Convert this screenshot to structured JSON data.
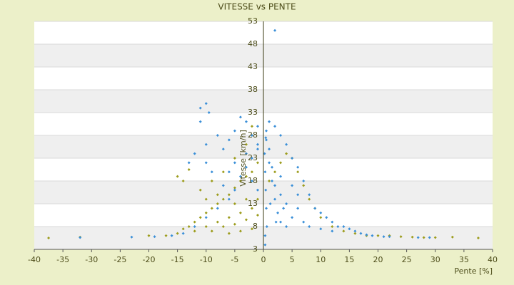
{
  "chart_data": {
    "type": "scatter",
    "title": "VITESSE vs PENTE",
    "x_label": "Pente [%]",
    "y_label": "Vitesse [km/h]",
    "xlim": [
      -40,
      40
    ],
    "xticks": [
      -40,
      -35,
      -30,
      -25,
      -20,
      -15,
      -10,
      -5,
      0,
      5,
      10,
      15,
      20,
      25,
      30,
      35,
      40
    ],
    "ylim": [
      3,
      53
    ],
    "yticks": [
      3,
      8,
      13,
      18,
      23,
      28,
      33,
      38,
      43,
      48,
      53
    ],
    "grid": true,
    "series": [
      {
        "color": "#9c9c1c",
        "x": [
          -37.5,
          -32,
          -20,
          -17,
          -15,
          -14,
          -13,
          -12,
          -11,
          -10,
          -9,
          -8,
          -7,
          -6,
          -5,
          -4,
          -3,
          -2,
          -1,
          -12,
          -10,
          -8,
          -6,
          -4,
          -2,
          -9,
          -7,
          -5,
          -3,
          -1,
          -14,
          -13,
          -15,
          -11,
          -9,
          -7,
          -5,
          -3,
          -2,
          -1,
          -6,
          -4,
          -2,
          1,
          2,
          3,
          4,
          5,
          6,
          7,
          8,
          9,
          10,
          12,
          14,
          16,
          18,
          20,
          22,
          24,
          26,
          28,
          30,
          33,
          37.5,
          -3,
          -5,
          -8,
          -10
        ],
        "values": [
          5.5,
          5.7,
          6,
          6,
          6.5,
          7.5,
          8,
          9,
          10,
          11,
          12,
          13,
          14,
          15,
          16.5,
          18,
          19,
          20,
          22,
          7,
          8,
          9,
          10,
          11,
          12,
          7,
          8,
          8.5,
          9.5,
          10.5,
          18,
          20.5,
          19,
          16,
          18,
          20,
          23,
          26,
          30,
          14,
          6.5,
          7,
          7.5,
          18,
          20,
          22,
          24,
          23,
          20,
          17,
          14,
          12,
          10,
          8,
          7,
          6.5,
          6,
          6,
          6,
          5.8,
          5.7,
          5.6,
          5.6,
          5.7,
          5.5,
          14,
          13,
          15,
          14
        ]
      },
      {
        "color": "#3a8fd8",
        "x": [
          -10,
          -11,
          -9.5,
          -11,
          -12,
          -13,
          -10,
          -8,
          -7,
          -6,
          -5,
          -4,
          -3,
          -2,
          -1,
          -1,
          0.5,
          1,
          2,
          2,
          3,
          4,
          5,
          6,
          7,
          8,
          9,
          10,
          11,
          12,
          13,
          14,
          15,
          16,
          17,
          18,
          19,
          21,
          22,
          27,
          29,
          -32,
          -23,
          -19,
          -16,
          -14,
          -12,
          -10,
          -8,
          -6,
          -5,
          -4,
          -3,
          -2,
          -1,
          0.2,
          0.3,
          0.4,
          0.5,
          0.6,
          0.3,
          1,
          1.5,
          2,
          2.5,
          3,
          4,
          5,
          6,
          7,
          8,
          10,
          12,
          0.5,
          1,
          1.5,
          2,
          3,
          3,
          4,
          5,
          6,
          -2,
          -1,
          -3,
          -5,
          -6,
          -7,
          -9,
          -10,
          0.3,
          0.4,
          1.2,
          2.2,
          3.5
        ],
        "values": [
          35,
          34,
          33,
          31,
          24,
          22,
          26,
          28,
          25,
          27,
          29,
          32,
          31,
          28,
          26,
          30,
          29,
          31,
          30,
          51,
          28,
          26,
          23,
          21,
          18,
          15,
          12,
          11,
          10,
          9,
          8,
          8,
          7.5,
          7,
          6.5,
          6.2,
          6,
          5.8,
          5.8,
          5.6,
          5.6,
          5.6,
          5.7,
          5.8,
          6,
          6.5,
          8,
          10,
          12,
          14,
          16,
          19,
          21,
          23,
          25,
          24,
          20,
          16,
          12,
          8,
          6,
          22,
          18,
          14,
          11,
          9,
          8,
          10,
          12,
          9,
          8,
          7.5,
          7,
          27,
          25,
          21,
          17,
          15,
          19,
          13,
          17,
          15,
          18,
          16,
          24,
          22,
          20,
          17,
          20,
          22,
          4,
          27.5,
          13,
          9,
          12
        ]
      }
    ]
  }
}
